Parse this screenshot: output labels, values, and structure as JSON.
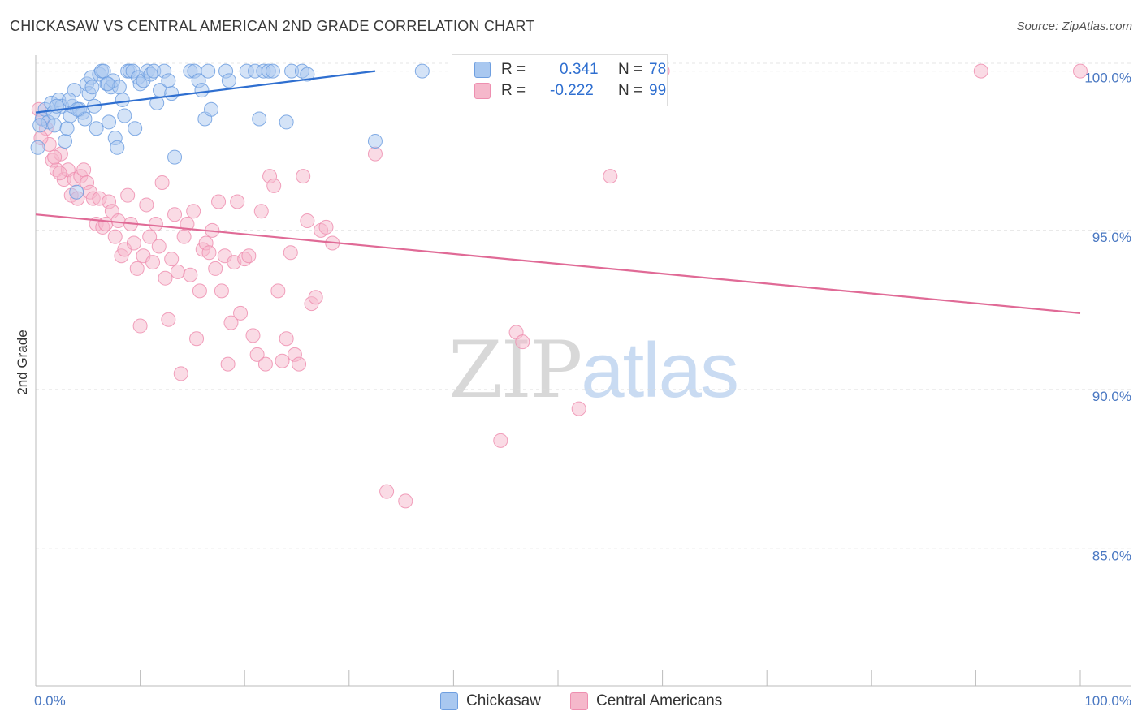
{
  "title": "CHICKASAW VS CENTRAL AMERICAN 2ND GRADE CORRELATION CHART",
  "source": "Source: ZipAtlas.com",
  "watermark": {
    "zip": "ZIP",
    "atlas": "atlas"
  },
  "legend_stats": [
    {
      "r_label": "R =",
      "r_value": "0.341",
      "n_label": "N =",
      "n_value": "78",
      "color": "#a9c8f0"
    },
    {
      "r_label": "R =",
      "r_value": "-0.222",
      "n_label": "N =",
      "n_value": "99",
      "color": "#f5b8cb"
    }
  ],
  "bottom_legend": [
    {
      "label": "Chickasaw",
      "color": "#a9c8f0"
    },
    {
      "label": "Central Americans",
      "color": "#f5b8cb"
    }
  ],
  "chart_data": {
    "type": "scatter",
    "title": "CHICKASAW VS CENTRAL AMERICAN 2ND GRADE CORRELATION CHART",
    "xlabel": "",
    "ylabel": "2nd Grade",
    "xlim": [
      0,
      100
    ],
    "ylim": [
      80.7,
      100.5
    ],
    "x_tick_labels": [
      "0.0%",
      "100.0%"
    ],
    "y_ticks": [
      {
        "value": 100,
        "label": "100.0%"
      },
      {
        "value": 95,
        "label": "95.0%"
      },
      {
        "value": 90,
        "label": "90.0%"
      },
      {
        "value": 85,
        "label": "85.0%"
      }
    ],
    "grid": true,
    "series": [
      {
        "name": "Chickasaw",
        "color": "#6f9fe0",
        "fill": "#a9c8f0",
        "trend": {
          "x": [
            0,
            32.5
          ],
          "y": [
            98.7,
            100.0
          ],
          "color": "#2f6fd0"
        },
        "points": [
          [
            0.2,
            97.6
          ],
          [
            0.6,
            98.5
          ],
          [
            0.9,
            98.8
          ],
          [
            1.2,
            98.4
          ],
          [
            1.5,
            99.0
          ],
          [
            1.7,
            98.7
          ],
          [
            1.8,
            98.3
          ],
          [
            2.2,
            99.1
          ],
          [
            2.5,
            98.9
          ],
          [
            2.8,
            97.8
          ],
          [
            3.0,
            98.2
          ],
          [
            3.3,
            98.6
          ],
          [
            3.5,
            98.9
          ],
          [
            3.7,
            99.4
          ],
          [
            3.9,
            96.2
          ],
          [
            4.2,
            98.8
          ],
          [
            4.5,
            98.7
          ],
          [
            4.7,
            98.5
          ],
          [
            4.9,
            99.6
          ],
          [
            5.1,
            99.3
          ],
          [
            5.3,
            99.8
          ],
          [
            5.6,
            98.9
          ],
          [
            5.8,
            98.2
          ],
          [
            6.1,
            99.9
          ],
          [
            6.3,
            100.0
          ],
          [
            6.5,
            100.0
          ],
          [
            6.8,
            99.6
          ],
          [
            7.0,
            98.4
          ],
          [
            7.2,
            99.5
          ],
          [
            7.4,
            99.7
          ],
          [
            7.6,
            97.9
          ],
          [
            7.8,
            97.6
          ],
          [
            8.0,
            99.5
          ],
          [
            8.3,
            99.1
          ],
          [
            8.5,
            98.6
          ],
          [
            8.8,
            100.0
          ],
          [
            9.0,
            100.0
          ],
          [
            9.3,
            100.0
          ],
          [
            9.5,
            98.2
          ],
          [
            9.8,
            99.8
          ],
          [
            10.0,
            99.6
          ],
          [
            10.3,
            99.7
          ],
          [
            10.7,
            100.0
          ],
          [
            11.0,
            99.9
          ],
          [
            11.3,
            100.0
          ],
          [
            11.6,
            99.0
          ],
          [
            11.9,
            99.4
          ],
          [
            12.3,
            100.0
          ],
          [
            12.7,
            99.7
          ],
          [
            13.0,
            99.3
          ],
          [
            13.3,
            97.3
          ],
          [
            14.8,
            100.0
          ],
          [
            15.2,
            100.0
          ],
          [
            15.6,
            99.7
          ],
          [
            15.9,
            99.4
          ],
          [
            16.2,
            98.5
          ],
          [
            16.5,
            100.0
          ],
          [
            16.8,
            98.8
          ],
          [
            18.2,
            100.0
          ],
          [
            18.5,
            99.7
          ],
          [
            20.2,
            100.0
          ],
          [
            21.0,
            100.0
          ],
          [
            21.4,
            98.5
          ],
          [
            21.8,
            100.0
          ],
          [
            22.3,
            100.0
          ],
          [
            22.7,
            100.0
          ],
          [
            24.0,
            98.4
          ],
          [
            24.5,
            100.0
          ],
          [
            25.5,
            100.0
          ],
          [
            26.0,
            99.9
          ],
          [
            32.5,
            97.8
          ],
          [
            37.0,
            100.0
          ],
          [
            3.2,
            99.1
          ],
          [
            6.9,
            99.6
          ],
          [
            5.4,
            99.5
          ],
          [
            2.0,
            98.9
          ],
          [
            4.0,
            98.8
          ],
          [
            0.4,
            98.3
          ]
        ]
      },
      {
        "name": "Central Americans",
        "color": "#ee8fb0",
        "fill": "#f5b8cb",
        "trend": {
          "x": [
            0,
            100
          ],
          "y": [
            95.5,
            92.4
          ],
          "color": "#e06a96"
        },
        "points": [
          [
            0.3,
            98.8
          ],
          [
            0.7,
            98.5
          ],
          [
            1.0,
            98.2
          ],
          [
            1.3,
            97.7
          ],
          [
            1.6,
            97.2
          ],
          [
            2.0,
            96.9
          ],
          [
            2.4,
            97.4
          ],
          [
            2.7,
            96.6
          ],
          [
            3.1,
            96.9
          ],
          [
            3.4,
            96.1
          ],
          [
            3.7,
            96.6
          ],
          [
            4.0,
            96.0
          ],
          [
            4.3,
            96.7
          ],
          [
            4.6,
            96.9
          ],
          [
            4.9,
            96.5
          ],
          [
            5.2,
            96.2
          ],
          [
            5.5,
            96.0
          ],
          [
            5.8,
            95.2
          ],
          [
            6.1,
            96.0
          ],
          [
            6.4,
            95.1
          ],
          [
            6.7,
            95.2
          ],
          [
            7.0,
            95.9
          ],
          [
            7.3,
            95.6
          ],
          [
            7.6,
            94.8
          ],
          [
            7.9,
            95.3
          ],
          [
            8.2,
            94.2
          ],
          [
            8.5,
            94.4
          ],
          [
            8.8,
            96.1
          ],
          [
            9.1,
            95.2
          ],
          [
            9.4,
            94.6
          ],
          [
            9.7,
            93.8
          ],
          [
            10.0,
            92.0
          ],
          [
            10.3,
            94.2
          ],
          [
            10.6,
            95.8
          ],
          [
            10.9,
            94.8
          ],
          [
            11.2,
            94.0
          ],
          [
            11.5,
            95.2
          ],
          [
            11.8,
            94.5
          ],
          [
            12.1,
            96.5
          ],
          [
            12.4,
            93.5
          ],
          [
            12.7,
            92.2
          ],
          [
            13.0,
            94.1
          ],
          [
            13.3,
            95.5
          ],
          [
            13.6,
            93.7
          ],
          [
            13.9,
            90.5
          ],
          [
            14.2,
            94.8
          ],
          [
            14.5,
            95.2
          ],
          [
            14.8,
            93.6
          ],
          [
            15.1,
            95.6
          ],
          [
            15.4,
            91.6
          ],
          [
            15.7,
            93.1
          ],
          [
            16.0,
            94.4
          ],
          [
            16.3,
            94.6
          ],
          [
            16.6,
            94.3
          ],
          [
            16.9,
            95.0
          ],
          [
            17.2,
            93.8
          ],
          [
            17.5,
            95.9
          ],
          [
            17.8,
            93.1
          ],
          [
            18.1,
            94.2
          ],
          [
            18.4,
            90.8
          ],
          [
            18.7,
            92.1
          ],
          [
            19.0,
            94.0
          ],
          [
            19.3,
            95.9
          ],
          [
            19.6,
            92.4
          ],
          [
            20.0,
            94.1
          ],
          [
            20.4,
            94.2
          ],
          [
            20.8,
            91.7
          ],
          [
            21.2,
            91.1
          ],
          [
            21.6,
            95.6
          ],
          [
            22.0,
            90.8
          ],
          [
            22.4,
            96.7
          ],
          [
            22.8,
            96.4
          ],
          [
            23.2,
            93.1
          ],
          [
            23.6,
            90.9
          ],
          [
            24.0,
            91.6
          ],
          [
            24.4,
            94.3
          ],
          [
            24.8,
            91.1
          ],
          [
            25.2,
            90.8
          ],
          [
            25.6,
            96.7
          ],
          [
            26.0,
            95.3
          ],
          [
            26.4,
            92.7
          ],
          [
            26.8,
            92.9
          ],
          [
            27.3,
            95.0
          ],
          [
            27.8,
            95.1
          ],
          [
            28.4,
            94.6
          ],
          [
            35.4,
            86.5
          ],
          [
            33.6,
            86.8
          ],
          [
            32.5,
            97.4
          ],
          [
            44.5,
            88.4
          ],
          [
            46.0,
            91.8
          ],
          [
            46.6,
            91.5
          ],
          [
            52.0,
            89.4
          ],
          [
            55.0,
            96.7
          ],
          [
            60.0,
            100.0
          ],
          [
            90.5,
            100.0
          ],
          [
            100.0,
            100.0
          ],
          [
            0.5,
            97.9
          ],
          [
            1.8,
            97.3
          ],
          [
            2.3,
            96.8
          ]
        ]
      }
    ]
  }
}
